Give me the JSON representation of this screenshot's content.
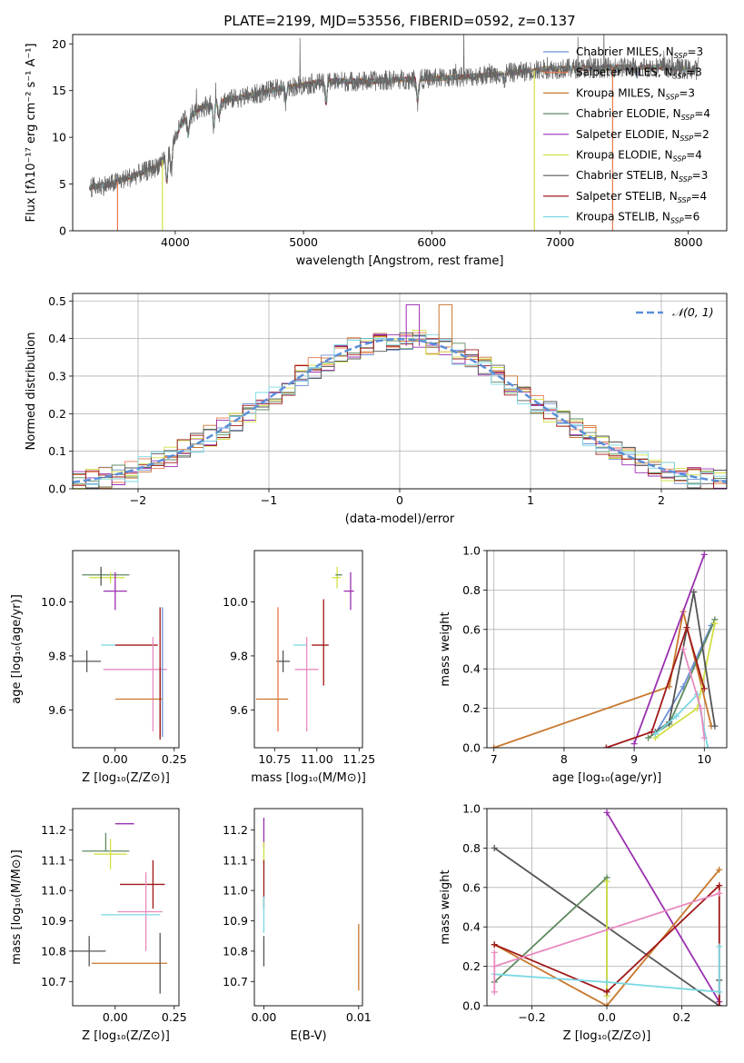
{
  "figure_title": "PLATE=2199, MJD=53556, FIBERID=0592, z=0.137",
  "colors": {
    "Chabrier MILES": "#6a8fd4",
    "Salpeter MILES": "#e8784a",
    "Kroupa MILES": "#c8772c",
    "Chabrier ELODIE": "#5e8a60",
    "Salpeter ELODIE": "#9a2fb0",
    "Kroupa ELODIE": "#d2e045",
    "Chabrier STELIB": "#555555",
    "Salpeter STELIB": "#a01818",
    "Kroupa STELIB": "#7ad8e4",
    "Kroupa STELIB alt": "#e88ac0",
    "gaussian": "#5b8fd8"
  },
  "chart_data": [
    {
      "id": "spectrum",
      "type": "line",
      "title": "",
      "xlabel": "wavelength [Angstrom, rest frame]",
      "ylabel": "Flux [fλ10⁻¹⁷ erg cm⁻² s⁻¹ A⁻¹]",
      "xlim": [
        3200,
        8300
      ],
      "ylim": [
        0,
        21
      ],
      "xticks": [
        4000,
        5000,
        6000,
        7000,
        8000
      ],
      "yticks": [
        0,
        5,
        10,
        15,
        20
      ],
      "legend_position": "top-right",
      "grid": false,
      "continuum": {
        "x": [
          3320,
          3500,
          3700,
          3850,
          3950,
          4050,
          4200,
          4400,
          4600,
          4800,
          5000,
          5200,
          5500,
          5800,
          6000,
          6300,
          6600,
          6900,
          7200,
          7500,
          7800,
          8080
        ],
        "y": [
          4.6,
          5.0,
          6.0,
          6.8,
          8.4,
          11.5,
          13.2,
          14.0,
          14.5,
          15.2,
          15.6,
          16.0,
          16.0,
          16.2,
          16.3,
          16.5,
          16.9,
          17.3,
          17.4,
          17.5,
          17.5,
          17.2
        ]
      },
      "series": [
        {
          "name": "Chabrier MILES",
          "nssp": "3"
        },
        {
          "name": "Salpeter MILES",
          "nssp": "3"
        },
        {
          "name": "Kroupa MILES",
          "nssp": "3"
        },
        {
          "name": "Chabrier ELODIE",
          "nssp": "4"
        },
        {
          "name": "Salpeter ELODIE",
          "nssp": "2"
        },
        {
          "name": "Kroupa ELODIE",
          "nssp": "4"
        },
        {
          "name": "Chabrier STELIB",
          "nssp": "3"
        },
        {
          "name": "Salpeter STELIB",
          "nssp": "4"
        },
        {
          "name": "Kroupa STELIB",
          "nssp": "6"
        }
      ],
      "drops": [
        {
          "series": "Salpeter MILES",
          "x": 3550
        },
        {
          "series": "Kroupa ELODIE",
          "x": 3900
        },
        {
          "series": "Kroupa ELODIE",
          "x": 6800
        },
        {
          "series": "Salpeter MILES",
          "x": 7410
        }
      ]
    },
    {
      "id": "residuals",
      "type": "step",
      "title": "",
      "xlabel": "(data-model)/error",
      "ylabel": "Normed distribution",
      "xlim": [
        -2.5,
        2.5
      ],
      "ylim": [
        0,
        0.52
      ],
      "xticks": [
        -2,
        -1,
        0,
        1,
        2
      ],
      "yticks": [
        0.0,
        0.1,
        0.2,
        0.3,
        0.4,
        0.5
      ],
      "grid": true,
      "legend_position": "top-right",
      "gaussian_label": "𝒩(0, 1)",
      "spikes": [
        {
          "x": 0.1,
          "y": 0.49,
          "series": "Salpeter ELODIE"
        },
        {
          "x": 0.35,
          "y": 0.49,
          "series": "Kroupa MILES"
        }
      ]
    },
    {
      "id": "age_vs_Z",
      "type": "errorbar",
      "title": "",
      "xlabel": "Z [log₁₀(Z/Z⊙)]",
      "ylabel": "age  [log₁₀(age/yr)]",
      "xlim": [
        -0.18,
        0.27
      ],
      "ylim": [
        9.46,
        10.19
      ],
      "xticks": [
        0.0,
        0.25
      ],
      "xticklabels": [
        "0.00",
        "0.25"
      ],
      "yticks": [
        9.6,
        9.8,
        10.0
      ],
      "points": [
        {
          "series": "Chabrier ELODIE",
          "x": -0.03,
          "y": 10.1,
          "xerr": [
            0.11,
            0.09
          ],
          "yerr": [
            0.0,
            0.0
          ]
        },
        {
          "series": "Kroupa ELODIE",
          "x": -0.02,
          "y": 10.09,
          "xerr": [
            0.09,
            0.06
          ],
          "yerr": [
            0.02,
            0.02
          ]
        },
        {
          "series": "Chabrier STELIB",
          "x": -0.06,
          "y": 10.1,
          "xerr": [
            0.0,
            0.0
          ],
          "yerr": [
            0.04,
            0.03
          ]
        },
        {
          "series": "Salpeter ELODIE",
          "x": 0.0,
          "y": 10.04,
          "xerr": [
            0.05,
            0.05
          ],
          "yerr": [
            0.07,
            0.07
          ]
        },
        {
          "series": "Chabrier STELIB",
          "x": -0.12,
          "y": 9.78,
          "xerr": [
            0.06,
            0.06
          ],
          "yerr": [
            0.04,
            0.04
          ]
        },
        {
          "series": "Kroupa STELIB",
          "x": -0.03,
          "y": 9.84,
          "xerr": [
            0.03,
            0.03
          ],
          "yerr": [
            0.0,
            0.0
          ]
        },
        {
          "series": "Salpeter STELIB",
          "x": 0.08,
          "y": 9.84,
          "xerr": [
            0.08,
            0.1
          ],
          "yerr": [
            0.0,
            0.0
          ]
        },
        {
          "series": "Kroupa STELIB alt",
          "x": 0.16,
          "y": 9.75,
          "xerr": [
            0.21,
            0.06
          ],
          "yerr": [
            0.23,
            0.12
          ]
        },
        {
          "series": "Salpeter STELIB",
          "x": 0.19,
          "y": 9.78,
          "xerr": [
            0.0,
            0.0
          ],
          "yerr": [
            0.29,
            0.2
          ]
        },
        {
          "series": "Chabrier MILES",
          "x": 0.2,
          "y": 9.8,
          "xerr": [
            0.0,
            0.0
          ],
          "yerr": [
            0.3,
            0.18
          ]
        },
        {
          "series": "Kroupa MILES",
          "x": 0.1,
          "y": 9.64,
          "xerr": [
            0.1,
            0.1
          ],
          "yerr": [
            0.0,
            0.0
          ]
        },
        {
          "series": "Salpeter STELIB",
          "x": 0.19,
          "y": 9.5,
          "xerr": [
            0.0,
            0.0
          ],
          "yerr": [
            0.0,
            0.26
          ]
        }
      ]
    },
    {
      "id": "age_vs_mass",
      "type": "errorbar",
      "title": "",
      "xlabel": "mass [log₁₀(M/M⊙)]",
      "ylabel": "",
      "xlim": [
        10.63,
        11.27
      ],
      "ylim": [
        9.46,
        10.19
      ],
      "xticks": [
        10.75,
        11.0,
        11.25
      ],
      "xticklabels": [
        "10.75",
        "11.00",
        "11.25"
      ],
      "yticks": [
        9.6,
        9.8,
        10.0
      ],
      "points": [
        {
          "series": "Kroupa ELODIE",
          "x": 11.12,
          "y": 10.09,
          "xerr": [
            0.03,
            0.02
          ],
          "yerr": [
            0.04,
            0.04
          ]
        },
        {
          "series": "Chabrier ELODIE",
          "x": 11.13,
          "y": 10.1,
          "xerr": [
            0.02,
            0.02
          ],
          "yerr": [
            0.0,
            0.0
          ]
        },
        {
          "series": "Salpeter ELODIE",
          "x": 11.2,
          "y": 10.04,
          "xerr": [
            0.04,
            0.02
          ],
          "yerr": [
            0.07,
            0.07
          ]
        },
        {
          "series": "Salpeter STELIB",
          "x": 11.04,
          "y": 9.84,
          "xerr": [
            0.07,
            0.03
          ],
          "yerr": [
            0.15,
            0.17
          ]
        },
        {
          "series": "Kroupa STELIB",
          "x": 10.9,
          "y": 9.84,
          "xerr": [
            0.04,
            0.04
          ],
          "yerr": [
            0.0,
            0.0
          ]
        },
        {
          "series": "Kroupa STELIB alt",
          "x": 10.94,
          "y": 9.75,
          "xerr": [
            0.07,
            0.07
          ],
          "yerr": [
            0.23,
            0.12
          ]
        },
        {
          "series": "Chabrier STELIB",
          "x": 10.8,
          "y": 9.78,
          "xerr": [
            0.04,
            0.04
          ],
          "yerr": [
            0.04,
            0.04
          ]
        },
        {
          "series": "Salpeter MILES",
          "x": 10.77,
          "y": 9.8,
          "xerr": [
            0.0,
            0.0
          ],
          "yerr": [
            0.28,
            0.18
          ]
        },
        {
          "series": "Kroupa MILES",
          "x": 10.73,
          "y": 9.64,
          "xerr": [
            0.09,
            0.1
          ],
          "yerr": [
            0.0,
            0.0
          ]
        }
      ]
    },
    {
      "id": "weight_vs_age",
      "type": "line",
      "title": "",
      "xlabel": "age  [log₁₀(age/yr)]",
      "ylabel": "mass weight",
      "xlim": [
        6.9,
        10.32
      ],
      "ylim": [
        0,
        1
      ],
      "xticks": [
        7,
        8,
        9,
        10
      ],
      "yticks": [
        0.0,
        0.2,
        0.4,
        0.6,
        0.8,
        1.0
      ],
      "yticklabels": [
        "0.0",
        "0.2",
        "0.4",
        "0.6",
        "0.8",
        "1.0"
      ],
      "grid": true,
      "series": [
        {
          "name": "Chabrier MILES",
          "x": [
            9.3,
            9.7,
            10.1
          ],
          "y": [
            0.07,
            0.31,
            0.62
          ]
        },
        {
          "name": "Kroupa MILES",
          "x": [
            7.0,
            9.5,
            9.7,
            10.1
          ],
          "y": [
            0.0,
            0.31,
            0.69,
            0.11
          ]
        },
        {
          "name": "Chabrier ELODIE",
          "x": [
            9.2,
            9.5,
            10.15
          ],
          "y": [
            0.05,
            0.12,
            0.65
          ]
        },
        {
          "name": "Salpeter ELODIE",
          "x": [
            9.0,
            10.0
          ],
          "y": [
            0.02,
            0.98
          ]
        },
        {
          "name": "Kroupa ELODIE",
          "x": [
            9.3,
            9.9,
            10.15
          ],
          "y": [
            0.05,
            0.2,
            0.63
          ]
        },
        {
          "name": "Chabrier STELIB",
          "x": [
            9.3,
            9.5,
            9.85,
            10.15
          ],
          "y": [
            0.08,
            0.13,
            0.79,
            0.11
          ]
        },
        {
          "name": "Salpeter STELIB",
          "x": [
            8.6,
            9.25,
            9.75,
            10.0
          ],
          "y": [
            0.0,
            0.08,
            0.61,
            0.3
          ]
        },
        {
          "name": "Kroupa STELIB",
          "x": [
            9.3,
            9.6,
            9.9,
            10.05
          ],
          "y": [
            0.07,
            0.16,
            0.27,
            0.0
          ]
        },
        {
          "name": "Kroupa STELIB alt",
          "x": [
            9.7,
            9.95,
            10.0
          ],
          "y": [
            0.5,
            0.2,
            0.05
          ]
        }
      ]
    },
    {
      "id": "mass_vs_Z",
      "type": "errorbar",
      "title": "",
      "xlabel": "Z [log₁₀(Z/Z⊙)]",
      "ylabel": "mass [log₁₀(M/M⊙)]",
      "xlim": [
        -0.18,
        0.27
      ],
      "ylim": [
        10.62,
        11.27
      ],
      "xticks": [
        0.0,
        0.25
      ],
      "xticklabels": [
        "0.00",
        "0.25"
      ],
      "yticks": [
        10.7,
        10.8,
        10.9,
        11.0,
        11.1,
        11.2
      ],
      "points": [
        {
          "series": "Salpeter ELODIE",
          "x": 0.03,
          "y": 11.22,
          "xerr": [
            0.03,
            0.05
          ],
          "yerr": [
            0.0,
            0.0
          ]
        },
        {
          "series": "Chabrier ELODIE",
          "x": -0.04,
          "y": 11.13,
          "xerr": [
            0.1,
            0.1
          ],
          "yerr": [
            0.0,
            0.06
          ]
        },
        {
          "series": "Kroupa ELODIE",
          "x": -0.02,
          "y": 11.12,
          "xerr": [
            0.07,
            0.07
          ],
          "yerr": [
            0.05,
            0.05
          ]
        },
        {
          "series": "Salpeter STELIB",
          "x": 0.16,
          "y": 11.02,
          "xerr": [
            0.14,
            0.05
          ],
          "yerr": [
            0.08,
            0.08
          ]
        },
        {
          "series": "Kroupa STELIB alt",
          "x": 0.13,
          "y": 10.93,
          "xerr": [
            0.12,
            0.07
          ],
          "yerr": [
            0.13,
            0.13
          ]
        },
        {
          "series": "Kroupa STELIB",
          "x": 0.09,
          "y": 10.92,
          "xerr": [
            0.15,
            0.1
          ],
          "yerr": [
            0.0,
            0.0
          ]
        },
        {
          "series": "Chabrier STELIB",
          "x": -0.11,
          "y": 10.8,
          "xerr": [
            0.07,
            0.07
          ],
          "yerr": [
            0.05,
            0.05
          ]
        },
        {
          "series": "Kroupa MILES",
          "x": 0.05,
          "y": 10.76,
          "xerr": [
            0.15,
            0.17
          ],
          "yerr": [
            0.0,
            0.0
          ]
        },
        {
          "series": "Chabrier STELIB",
          "x": 0.19,
          "y": 10.76,
          "xerr": [
            0.0,
            0.0
          ],
          "yerr": [
            0.1,
            0.1
          ]
        }
      ]
    },
    {
      "id": "mass_vs_ebv",
      "type": "errorbar",
      "title": "",
      "xlabel": "E(B-V)",
      "ylabel": "",
      "xlim": [
        -0.001,
        0.0104
      ],
      "ylim": [
        10.62,
        11.27
      ],
      "xticks": [
        0.0,
        0.01
      ],
      "xticklabels": [
        "0.00",
        "0.01"
      ],
      "yticks": [
        10.7,
        10.8,
        10.9,
        11.0,
        11.1,
        11.2
      ],
      "points": [
        {
          "series": "Salpeter ELODIE",
          "x": 0.0,
          "y": 11.18,
          "yerr": [
            0.04,
            0.06
          ]
        },
        {
          "series": "Kroupa ELODIE",
          "x": 0.0,
          "y": 11.12,
          "yerr": [
            0.04,
            0.04
          ]
        },
        {
          "series": "Salpeter STELIB",
          "x": 0.0,
          "y": 11.02,
          "yerr": [
            0.08,
            0.08
          ]
        },
        {
          "series": "Kroupa STELIB",
          "x": 0.0,
          "y": 10.92,
          "yerr": [
            0.06,
            0.06
          ]
        },
        {
          "series": "Chabrier STELIB",
          "x": 0.0,
          "y": 10.8,
          "yerr": [
            0.05,
            0.05
          ]
        },
        {
          "series": "Kroupa MILES",
          "x": 0.01,
          "y": 10.78,
          "yerr": [
            0.11,
            0.11
          ]
        }
      ]
    },
    {
      "id": "weight_vs_Z",
      "type": "line",
      "title": "",
      "xlabel": "Z [log₁₀(Z/Z⊙)]",
      "ylabel": "mass weight",
      "xlim": [
        -0.32,
        0.32
      ],
      "ylim": [
        0,
        1
      ],
      "xticks": [
        -0.2,
        0.0,
        0.2
      ],
      "xticklabels": [
        "−0.2",
        "0.0",
        "0.2"
      ],
      "yticks": [
        0.0,
        0.2,
        0.4,
        0.6,
        0.8,
        1.0
      ],
      "yticklabels": [
        "0.0",
        "0.2",
        "0.4",
        "0.6",
        "0.8",
        "1.0"
      ],
      "grid": true,
      "series": [
        {
          "name": "Chabrier STELIB",
          "x": [
            -0.3,
            0.3,
            0.3
          ],
          "y": [
            0.8,
            0.0,
            0.13
          ]
        },
        {
          "name": "Salpeter ELODIE",
          "x": [
            0.0,
            0.3
          ],
          "y": [
            0.98,
            0.02
          ]
        },
        {
          "name": "Chabrier ELODIE",
          "x": [
            -0.3,
            0.0,
            0.0
          ],
          "y": [
            0.12,
            0.65,
            0.05
          ]
        },
        {
          "name": "Kroupa ELODIE",
          "x": [
            0.0,
            0.0
          ],
          "y": [
            0.63,
            0.05
          ]
        },
        {
          "name": "Kroupa MILES",
          "x": [
            -0.3,
            0.0,
            0.3
          ],
          "y": [
            0.31,
            0.0,
            0.69
          ]
        },
        {
          "name": "Salpeter STELIB",
          "x": [
            -0.3,
            0.0,
            0.3,
            0.3
          ],
          "y": [
            0.31,
            0.07,
            0.61,
            0.0
          ]
        },
        {
          "name": "Kroupa STELIB alt",
          "x": [
            -0.3,
            0.3
          ],
          "y": [
            0.2,
            0.57
          ]
        },
        {
          "name": "Kroupa STELIB",
          "x": [
            -0.3,
            0.0,
            0.3,
            0.3
          ],
          "y": [
            0.16,
            0.12,
            0.07,
            0.3
          ]
        },
        {
          "name": "Kroupa STELIB alt",
          "x": [
            -0.3,
            -0.3
          ],
          "y": [
            0.07,
            0.27
          ]
        }
      ]
    }
  ]
}
